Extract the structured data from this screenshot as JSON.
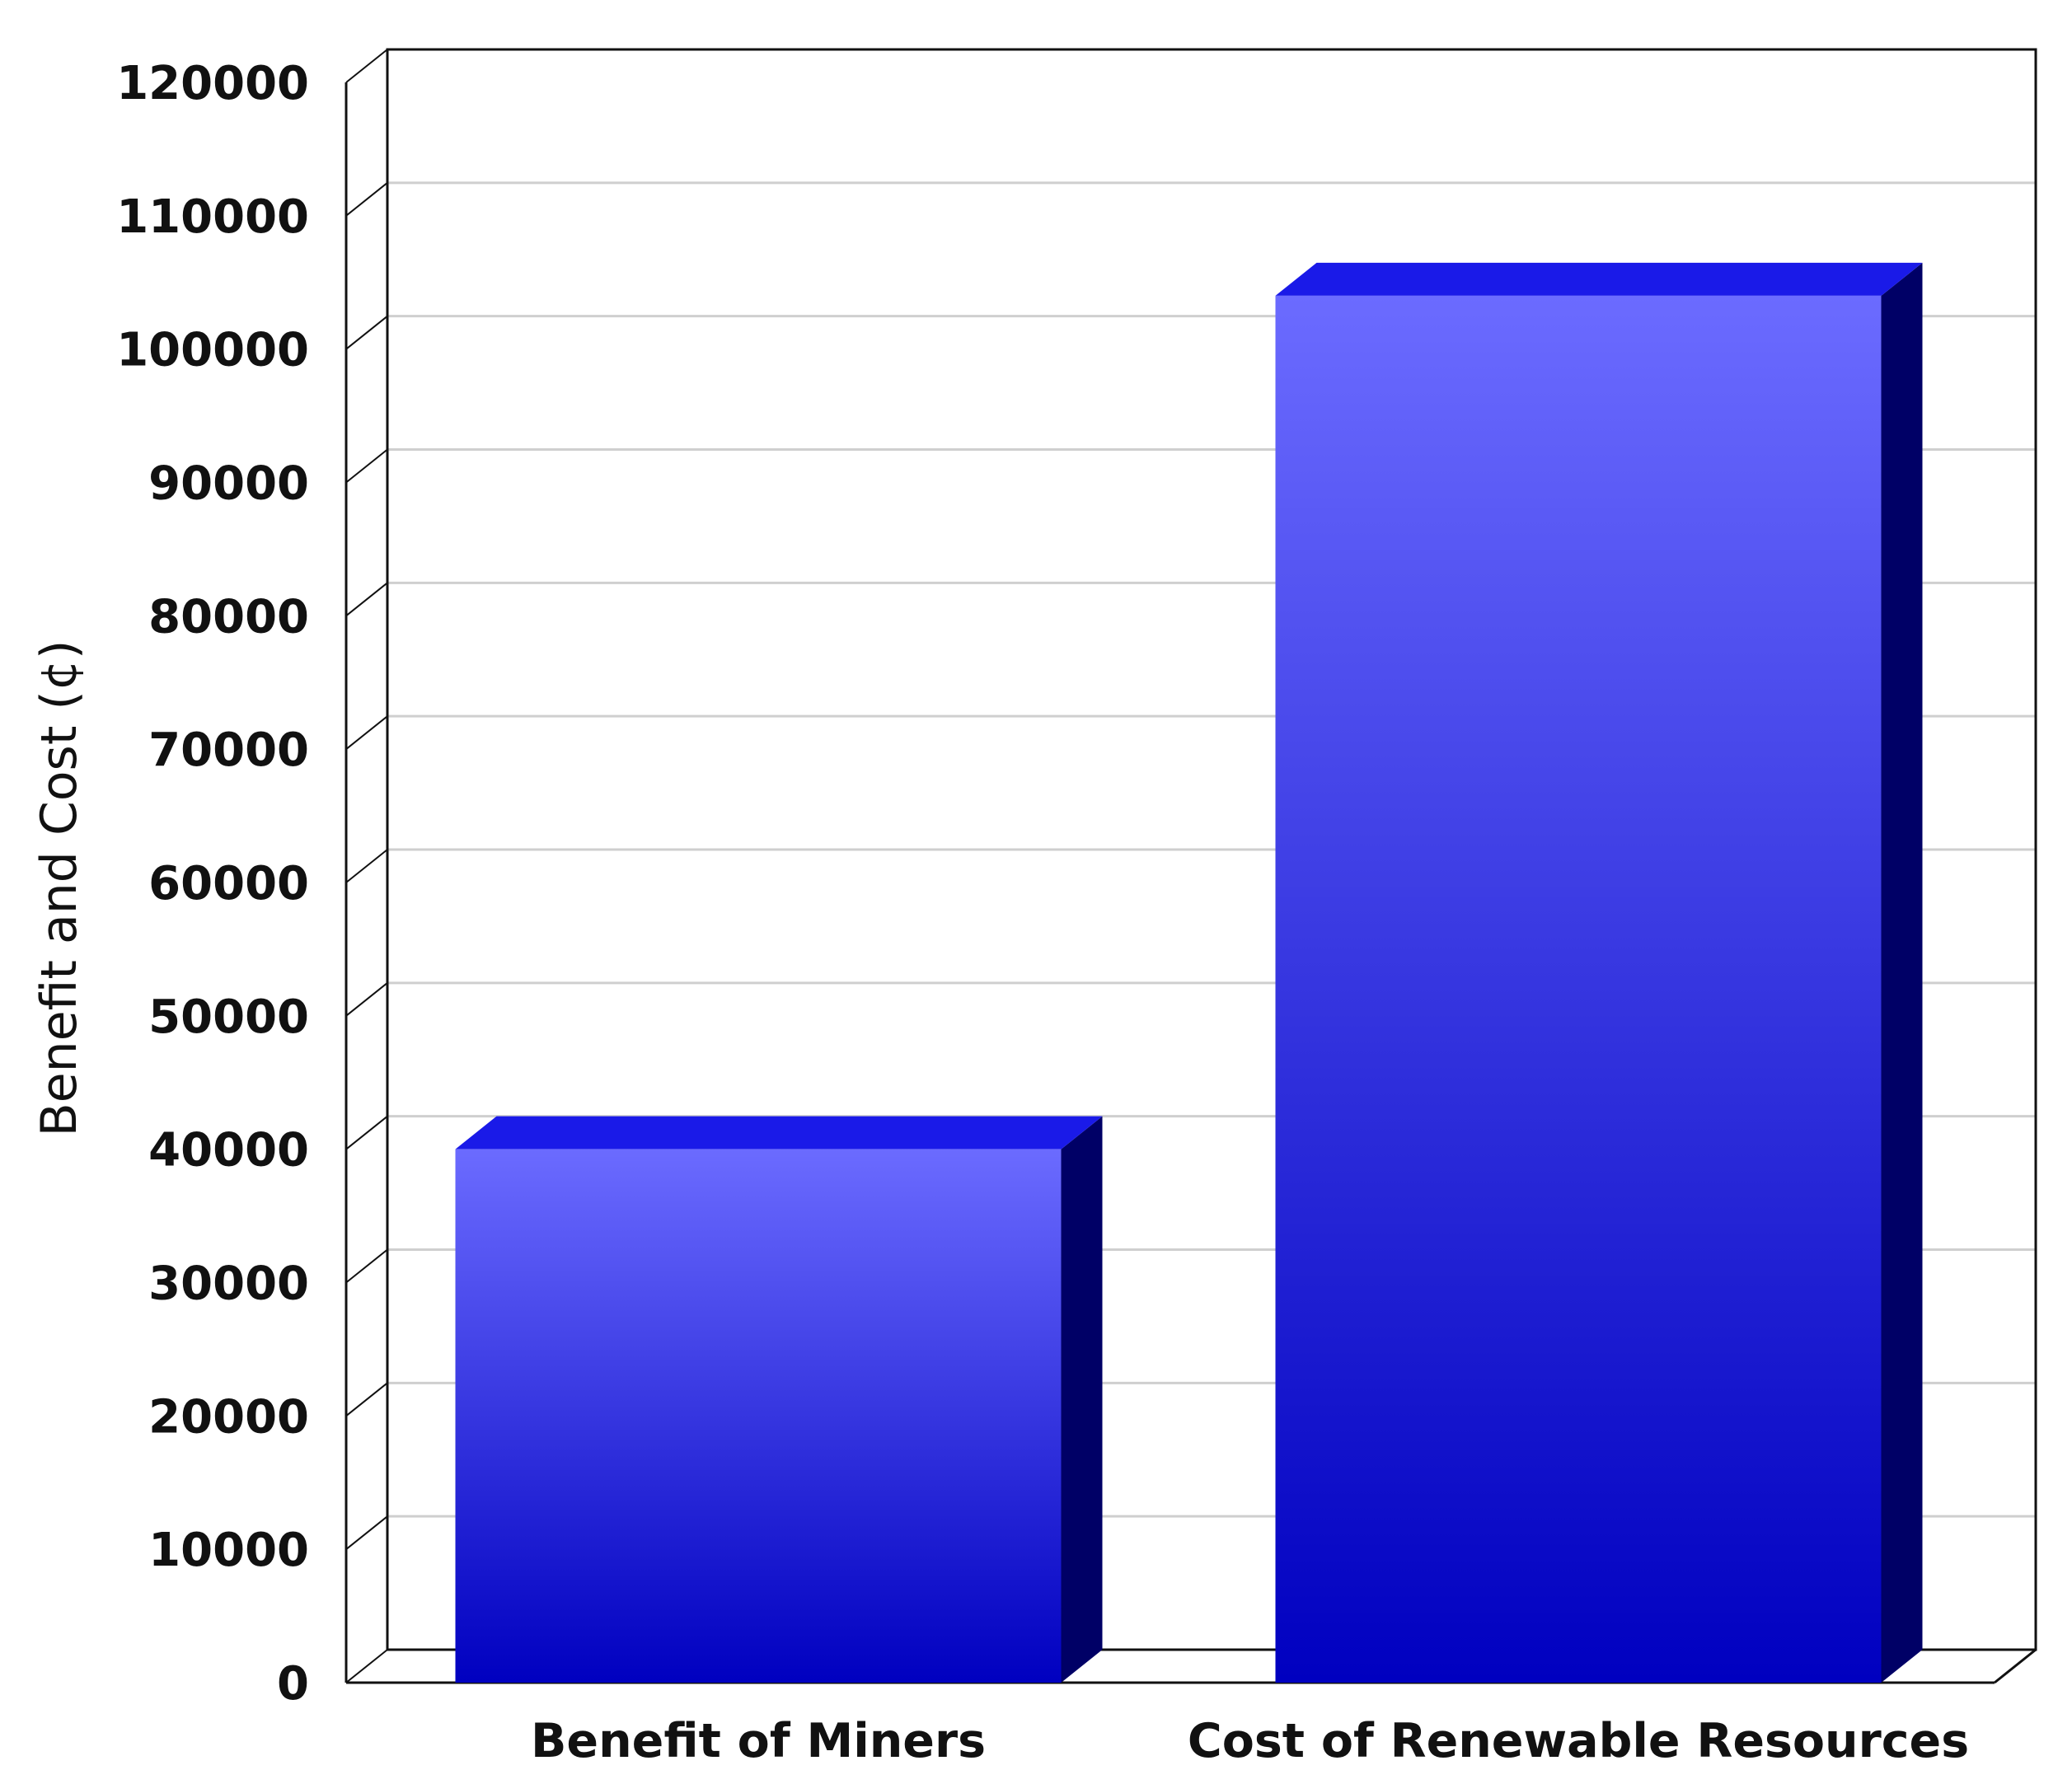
{
  "chart_data": {
    "type": "bar",
    "style": "3d",
    "categories": [
      "Benefit of Miners",
      "Cost of Renewable Resources"
    ],
    "series": [
      {
        "values": [
          40000,
          104000
        ]
      }
    ],
    "ylabel": "Benefit and Cost (¢)",
    "xlabel": "",
    "ylim": [
      0,
      120000
    ],
    "yticks": [
      "0",
      "10000",
      "20000",
      "30000",
      "40000",
      "50000",
      "60000",
      "70000",
      "80000",
      "90000",
      "100000",
      "110000",
      "120000"
    ],
    "grid": true,
    "legend": "none",
    "colors": {
      "bar_front_top": "#6b6bff",
      "bar_front_bottom": "#0000c0",
      "bar_side": "#000066",
      "bar_top": "#1a1ae8",
      "grid": "#cfcfcf",
      "axis": "#111111"
    }
  }
}
